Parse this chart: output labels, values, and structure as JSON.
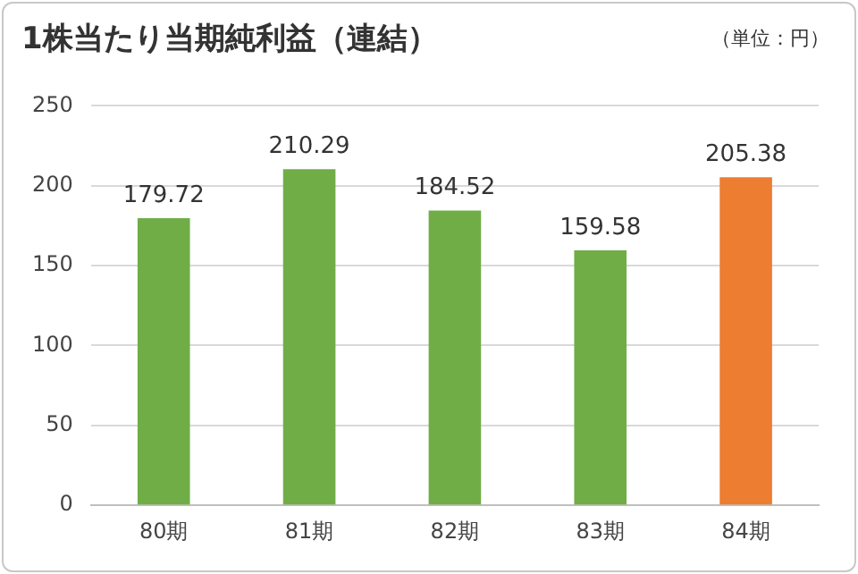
{
  "chart_data": {
    "type": "bar",
    "title": "1株当たり当期純利益（連結）",
    "annotations": [
      "（単位：円）"
    ],
    "categories": [
      "80期",
      "81期",
      "82期",
      "83期",
      "84期"
    ],
    "values": [
      179.72,
      210.29,
      184.52,
      159.58,
      205.38
    ],
    "colors": [
      "#70ad47",
      "#70ad47",
      "#70ad47",
      "#70ad47",
      "#ed7d31"
    ],
    "ylim": [
      0,
      250
    ],
    "yticks": [
      0,
      50,
      100,
      150,
      200,
      250
    ],
    "grid": "y",
    "data_labels": true,
    "legend": false
  }
}
